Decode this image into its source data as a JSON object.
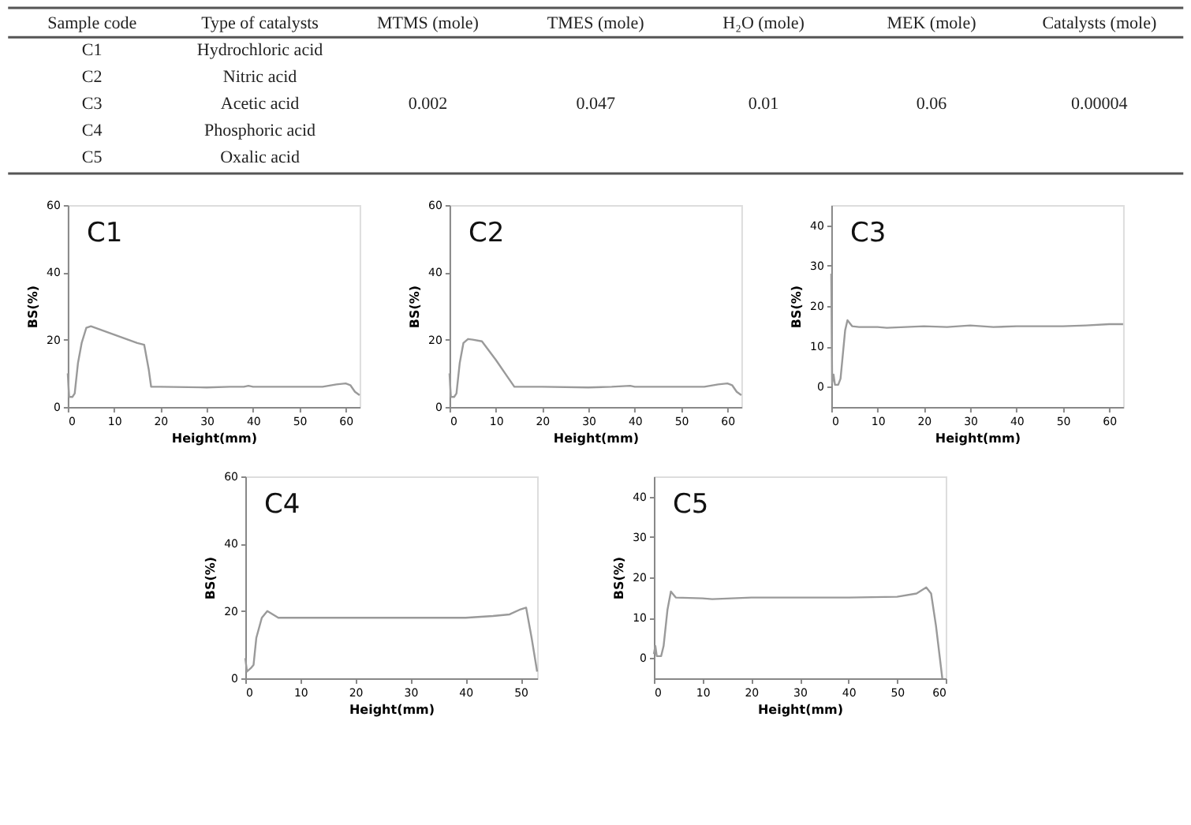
{
  "chart_data": [
    {
      "type": "other",
      "categories": [
        "Sample code",
        "Type of catalysts",
        "MTMS (mole)",
        "TMES (mole)",
        "H₂O (mole)",
        "MEK (mole)",
        "Catalysts (mole)"
      ],
      "cell_labels": [
        [
          "C1",
          "Hydrochloric acid",
          null,
          null,
          null,
          null,
          null
        ],
        [
          "C2",
          "Nitric acid",
          null,
          null,
          null,
          null,
          null
        ],
        [
          "C3",
          "Acetic acid",
          "0.002",
          "0.047",
          "0.01",
          "0.06",
          "0.00004"
        ],
        [
          "C4",
          "Phosphoric acid",
          null,
          null,
          null,
          null,
          null
        ],
        [
          "C5",
          "Oxalic acid",
          null,
          null,
          null,
          null,
          null
        ]
      ]
    },
    {
      "type": "line",
      "title": "C1",
      "xlabel": "Height(mm)",
      "ylabel": "BS(%)",
      "xlim": [
        0,
        63
      ],
      "xticks": [
        0,
        10,
        20,
        30,
        40,
        50,
        60
      ],
      "ylim": [
        0,
        60
      ],
      "yticks": [
        0,
        20,
        40,
        60
      ],
      "grid": false,
      "x": [
        0,
        0.3,
        1,
        1.5,
        2.2,
        3,
        4,
        5,
        7,
        9,
        11,
        13,
        15,
        16.5,
        17.5,
        18,
        20,
        30,
        35,
        38,
        39,
        40,
        50,
        55,
        58,
        60,
        61,
        62,
        63
      ],
      "series": [
        {
          "color": "#9a9a9a",
          "values": [
            10,
            3,
            3,
            4,
            13,
            19,
            23.5,
            24,
            23,
            22,
            21,
            20,
            19,
            18.5,
            11,
            6,
            6,
            5.8,
            6,
            6,
            6.3,
            6,
            6,
            6,
            6.7,
            7,
            6.5,
            4.5,
            3.5
          ]
        }
      ]
    },
    {
      "type": "line",
      "title": "C2",
      "xlabel": "Height(mm)",
      "ylabel": "BS(%)",
      "xlim": [
        0,
        63
      ],
      "xticks": [
        0,
        10,
        20,
        30,
        40,
        50,
        60
      ],
      "ylim": [
        0,
        60
      ],
      "yticks": [
        0,
        20,
        40,
        60
      ],
      "grid": false,
      "x": [
        0,
        0.3,
        1,
        1.5,
        2.2,
        3,
        4,
        5,
        7,
        10,
        12.5,
        14,
        20,
        30,
        35,
        39,
        40,
        50,
        55,
        58,
        60,
        61,
        62,
        63
      ],
      "series": [
        {
          "color": "#9a9a9a",
          "values": [
            10,
            3,
            3,
            4,
            13,
            19,
            20.2,
            20,
            19.5,
            14,
            9,
            6,
            6,
            5.8,
            6,
            6.3,
            6,
            6,
            6,
            6.7,
            7,
            6.5,
            4.5,
            3.5
          ]
        }
      ]
    },
    {
      "type": "line",
      "title": "C3",
      "xlabel": "Height(mm)",
      "ylabel": "BS(%)",
      "xlim": [
        0,
        63
      ],
      "xticks": [
        0,
        10,
        20,
        30,
        40,
        50,
        60
      ],
      "ylim": [
        -5,
        45
      ],
      "yticks": [
        0,
        10,
        20,
        30,
        40
      ],
      "grid": false,
      "x": [
        0,
        0.2,
        0.5,
        0.8,
        1.5,
        2,
        2.5,
        3,
        3.5,
        4.5,
        6,
        10,
        12,
        20,
        25,
        30,
        35,
        40,
        50,
        55,
        60,
        63
      ],
      "series": [
        {
          "color": "#9a9a9a",
          "values": [
            28,
            1,
            3,
            0.5,
            0.5,
            2,
            8,
            14,
            16.5,
            15,
            14.8,
            14.8,
            14.6,
            15,
            14.8,
            15.2,
            14.8,
            15,
            15,
            15.2,
            15.5,
            15.5
          ]
        }
      ]
    },
    {
      "type": "line",
      "title": "C4",
      "xlabel": "Height(mm)",
      "ylabel": "BS(%)",
      "xlim": [
        0,
        53
      ],
      "xticks": [
        0,
        10,
        20,
        30,
        40,
        50
      ],
      "ylim": [
        0,
        60
      ],
      "yticks": [
        0,
        20,
        40,
        60
      ],
      "grid": false,
      "x": [
        0,
        0.3,
        1,
        1.5,
        2,
        3,
        4,
        5,
        6,
        10,
        20,
        30,
        40,
        45,
        48,
        50,
        51,
        52,
        53
      ],
      "series": [
        {
          "color": "#9a9a9a",
          "values": [
            6,
            2,
            3,
            4,
            12,
            18,
            20,
            19,
            18,
            18,
            18,
            18,
            18,
            18.5,
            19,
            20.5,
            21,
            12,
            2
          ]
        }
      ]
    },
    {
      "type": "line",
      "title": "C5",
      "xlabel": "Height(mm)",
      "ylabel": "BS(%)",
      "xlim": [
        0,
        60
      ],
      "xticks": [
        0,
        10,
        20,
        30,
        40,
        50,
        60
      ],
      "ylim": [
        -5,
        45
      ],
      "yticks": [
        0,
        10,
        20,
        30,
        40
      ],
      "grid": false,
      "x": [
        0,
        0.3,
        0.6,
        1.5,
        2,
        2.8,
        3.5,
        4.5,
        10,
        12,
        20,
        30,
        40,
        50,
        54,
        56,
        57,
        58,
        59.3
      ],
      "series": [
        {
          "color": "#9a9a9a",
          "values": [
            1,
            3,
            0.5,
            0.5,
            3,
            12,
            16.5,
            15,
            14.8,
            14.6,
            15,
            15,
            15,
            15.2,
            16,
            17.5,
            16,
            8,
            -5
          ]
        }
      ]
    }
  ]
}
